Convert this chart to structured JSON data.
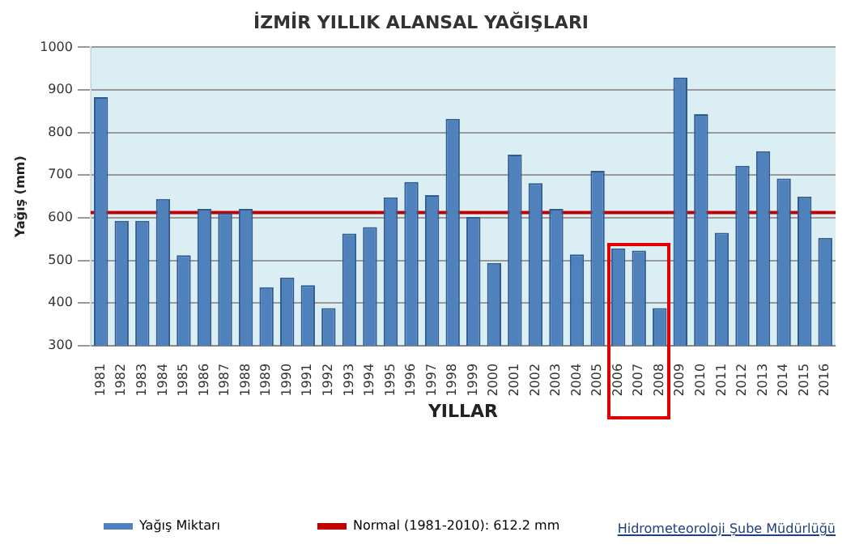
{
  "chart_data": {
    "type": "bar",
    "title": "İZMİR YILLIK ALANSAL YAĞIŞLARI",
    "xlabel": "YILLAR",
    "ylabel": "Yağış (mm)",
    "categories": [
      "1981",
      "1982",
      "1983",
      "1984",
      "1985",
      "1986",
      "1987",
      "1988",
      "1989",
      "1990",
      "1991",
      "1992",
      "1993",
      "1994",
      "1995",
      "1996",
      "1997",
      "1998",
      "1999",
      "2000",
      "2001",
      "2002",
      "2003",
      "2004",
      "2005",
      "2006",
      "2007",
      "2008",
      "2009",
      "2010",
      "2011",
      "2012",
      "2013",
      "2014",
      "2015",
      "2016"
    ],
    "series": [
      {
        "name": "Yağış Miktarı",
        "color": "#4f81bd",
        "values": [
          883,
          593,
          593,
          644,
          512,
          621,
          611,
          621,
          437,
          460,
          442,
          388,
          563,
          578,
          648,
          684,
          653,
          832,
          602,
          494,
          748,
          681,
          621,
          514,
          710,
          528,
          523,
          388,
          929,
          843,
          565,
          722,
          756,
          692,
          650,
          553
        ]
      }
    ],
    "ylim": [
      300,
      1000
    ],
    "yticks": [
      300,
      400,
      500,
      600,
      700,
      800,
      900,
      1000
    ],
    "grid": "y",
    "legend": "bottom",
    "ref_lines": [
      {
        "axis": "y",
        "value": 612.2,
        "label": "Normal (1981-2010): 612.2 mm",
        "color": "#c00000"
      }
    ],
    "annotations": [
      "Hidrometeoroloji Şube Müdürlüğü"
    ]
  }
}
